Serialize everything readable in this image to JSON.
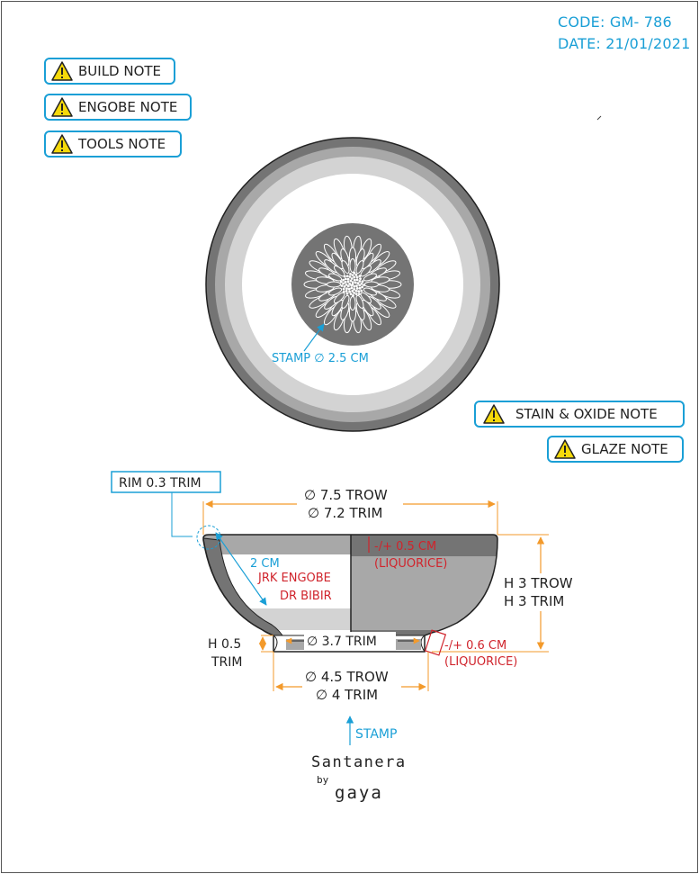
{
  "header": {
    "code": "CODE: GM- 786",
    "date": "DATE: 21/01/2021"
  },
  "notes": {
    "build": "BUILD NOTE",
    "engobe": "ENGOBE NOTE",
    "tools": "TOOLS NOTE",
    "stain_oxide": "STAIN & OXIDE NOTE",
    "glaze": "GLAZE NOTE"
  },
  "top_view": {
    "stamp_label": "STAMP ∅ 2.5 CM"
  },
  "side_view": {
    "rim_trim": "RIM 0.3 TRIM",
    "diameter_trow": "∅ 7.5 TROW",
    "diameter_trim": "∅ 7.2 TRIM",
    "wall_depth": "2 CM",
    "engobe_line1": "JRK ENGOBE",
    "engobe_line2": "DR BIBIR",
    "rim_band": "-/+ 0.5 CM",
    "rim_band_material": "(LIQUORICE)",
    "height_trow": "H 3 TROW",
    "height_trim": "H 3 TRIM",
    "foot_height_value": "H 0.5",
    "foot_height_trim": "TRIM",
    "foot_inner": "∅ 3.7 TRIM",
    "foot_band": "-/+ 0.6 CM",
    "foot_band_material": "(LIQUORICE)",
    "foot_trow": "∅ 4.5 TROW",
    "foot_trim": "∅ 4 TRIM",
    "stamp_label": "STAMP"
  },
  "brand": {
    "name": "Santanera",
    "by": "by",
    "maker": "gaya"
  },
  "colors": {
    "accent_blue": "#1a9fd6",
    "dimension_orange": "#f39a2b",
    "annotation_red": "#d0242c",
    "glaze_dark": "#747474",
    "glaze_mid": "#a8a8a8",
    "glaze_light": "#d3d3d3",
    "warning_yellow": "#f5d90a"
  },
  "icons": {
    "warning": "warning-triangle-icon",
    "stamp": "flower-stamp-icon"
  }
}
